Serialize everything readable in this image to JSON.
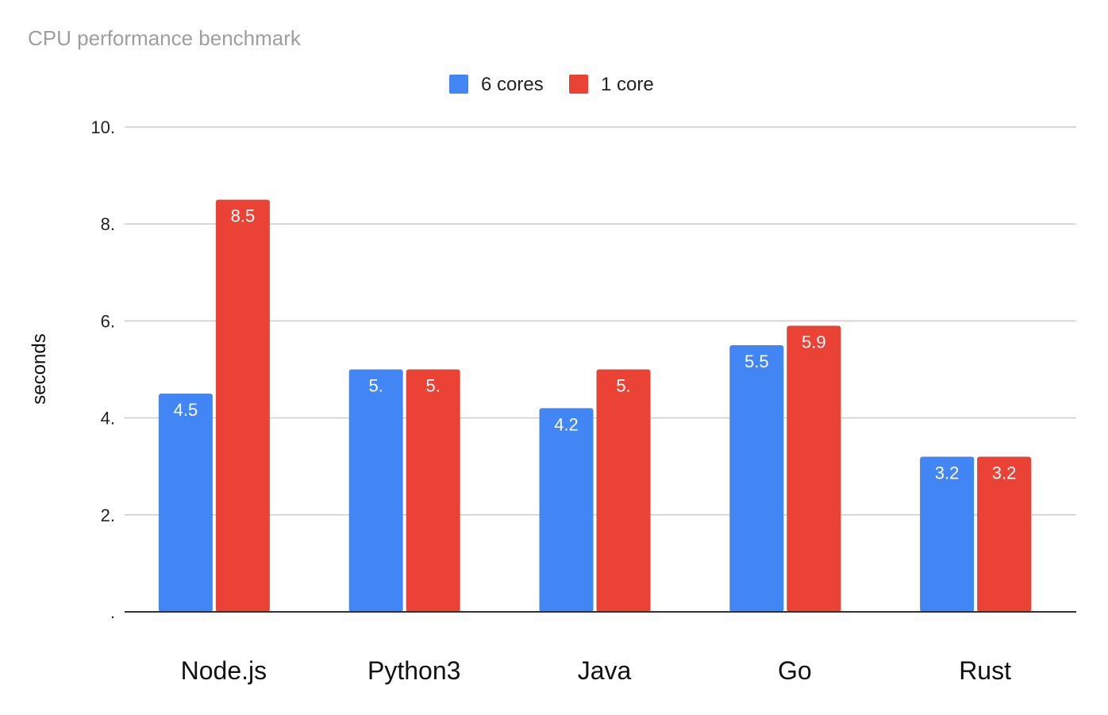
{
  "chart_data": {
    "type": "bar",
    "title": "CPU performance benchmark",
    "ylabel": "seconds",
    "xlabel": "",
    "categories": [
      "Node.js",
      "Python3",
      "Java",
      "Go",
      "Rust"
    ],
    "series": [
      {
        "name": "6 cores",
        "color": "#4285f4",
        "values": [
          4.5,
          5.0,
          4.2,
          5.5,
          3.2
        ],
        "labels": [
          "4.5",
          "5.",
          "4.2",
          "5.5",
          "3.2"
        ]
      },
      {
        "name": "1 core",
        "color": "#ea4335",
        "values": [
          8.5,
          5.0,
          5.0,
          5.9,
          3.2
        ],
        "labels": [
          "8.5",
          "5.",
          "5.",
          "5.9",
          "3.2"
        ]
      }
    ],
    "ylim": [
      0,
      10
    ],
    "yticks": [
      0,
      2,
      4,
      6,
      8,
      10
    ],
    "ytick_labels": [
      ".",
      "2.",
      "4.",
      "6.",
      "8.",
      "10."
    ],
    "grid": true,
    "legend_position": "top-center"
  }
}
